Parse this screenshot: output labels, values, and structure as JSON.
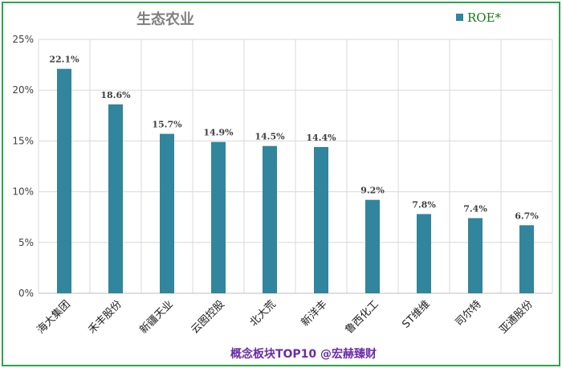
{
  "chart_data": {
    "type": "bar",
    "title": "生态农业",
    "categories": [
      "海大集团",
      "禾丰股份",
      "新疆天业",
      "云图控股",
      "北大荒",
      "新洋丰",
      "鲁西化工",
      "ST维维",
      "司尔特",
      "亚通股份"
    ],
    "series": [
      {
        "name": "ROE*",
        "values": [
          22.1,
          18.6,
          15.7,
          14.9,
          14.5,
          14.4,
          9.2,
          7.8,
          7.4,
          6.7
        ],
        "color": "#31859c"
      }
    ],
    "data_labels": [
      "22.1%",
      "18.6%",
      "15.7%",
      "14.9%",
      "14.5%",
      "14.4%",
      "9.2%",
      "7.8%",
      "7.4%",
      "6.7%"
    ],
    "ylim": [
      0,
      25
    ],
    "yticks": [
      0,
      5,
      10,
      15,
      20,
      25
    ],
    "ytick_labels": [
      "0%",
      "5%",
      "10%",
      "15%",
      "20%",
      "25%"
    ],
    "grid": true,
    "legend_position": "top-right",
    "xlabel": "",
    "ylabel": "",
    "footer": "概念板块TOP10 @宏赫臻财"
  },
  "colors": {
    "frame": "#2ea44a",
    "bar": "#31859c",
    "grid": "#d9d9d9",
    "footer": "#6a2ca8",
    "legend_text": "#1a7a1a"
  }
}
